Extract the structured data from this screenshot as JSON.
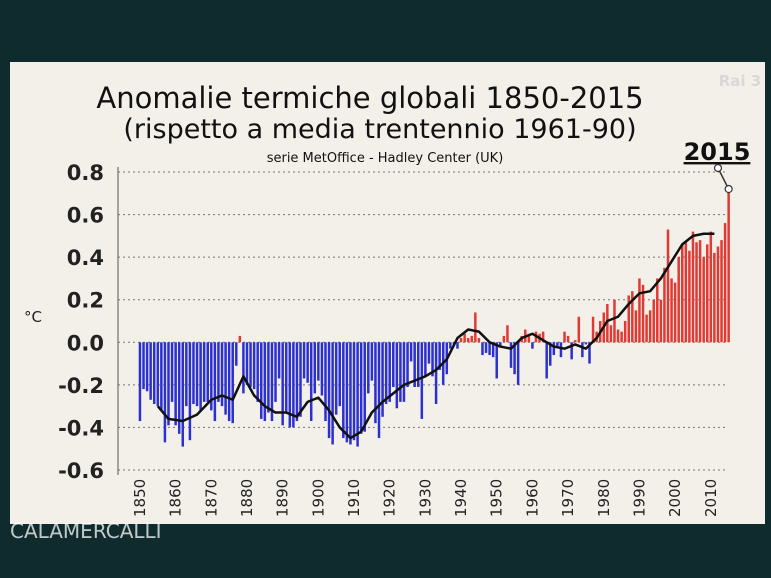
{
  "chart_data": {
    "type": "bar",
    "title": "Anomalie termiche globali 1850-2015",
    "subtitle": "(rispetto a media trentennio 1961-90)",
    "source": "serie MetOffice - Hadley Center (UK)",
    "y_label": "°C",
    "logo": "Rai 3",
    "watermark": "CALAMERCALLI",
    "annotations": [
      {
        "text": "2015"
      }
    ],
    "grid": true,
    "xlim": [
      1848.5,
      2016.5
    ],
    "xticks": [
      1850,
      1860,
      1870,
      1880,
      1890,
      1900,
      1910,
      1920,
      1930,
      1940,
      1950,
      1960,
      1970,
      1980,
      1990,
      2000,
      2010
    ],
    "ylim": [
      -0.6,
      0.8
    ],
    "yticks": [
      0.8,
      0.6,
      0.4,
      0.2,
      {
        "value": 0,
        "label": "0.0"
      },
      -0.2,
      -0.4,
      -0.6
    ],
    "series": [
      {
        "type": "bar",
        "color": "#e03a35",
        "negative_color": "#2b30cf",
        "x": [
          1850,
          1851,
          1852,
          1853,
          1854,
          1855,
          1856,
          1857,
          1858,
          1859,
          1860,
          1861,
          1862,
          1863,
          1864,
          1865,
          1866,
          1867,
          1868,
          1869,
          1870,
          1871,
          1872,
          1873,
          1874,
          1875,
          1876,
          1877,
          1878,
          1879,
          1880,
          1881,
          1882,
          1883,
          1884,
          1885,
          1886,
          1887,
          1888,
          1889,
          1890,
          1891,
          1892,
          1893,
          1894,
          1895,
          1896,
          1897,
          1898,
          1899,
          1900,
          1901,
          1902,
          1903,
          1904,
          1905,
          1906,
          1907,
          1908,
          1909,
          1910,
          1911,
          1912,
          1913,
          1914,
          1915,
          1916,
          1917,
          1918,
          1919,
          1920,
          1921,
          1922,
          1923,
          1924,
          1925,
          1926,
          1927,
          1928,
          1929,
          1930,
          1931,
          1932,
          1933,
          1934,
          1935,
          1936,
          1937,
          1938,
          1939,
          1940,
          1941,
          1942,
          1943,
          1944,
          1945,
          1946,
          1947,
          1948,
          1949,
          1950,
          1951,
          1952,
          1953,
          1954,
          1955,
          1956,
          1957,
          1958,
          1959,
          1960,
          1961,
          1962,
          1963,
          1964,
          1965,
          1966,
          1967,
          1968,
          1969,
          1970,
          1971,
          1972,
          1973,
          1974,
          1975,
          1976,
          1977,
          1978,
          1979,
          1980,
          1981,
          1982,
          1983,
          1984,
          1985,
          1986,
          1987,
          1988,
          1989,
          1990,
          1991,
          1992,
          1993,
          1994,
          1995,
          1996,
          1997,
          1998,
          1999,
          2000,
          2001,
          2002,
          2003,
          2004,
          2005,
          2006,
          2007,
          2008,
          2009,
          2010,
          2011,
          2012,
          2013,
          2014,
          2015
        ],
        "values": [
          -0.37,
          -0.22,
          -0.23,
          -0.27,
          -0.29,
          -0.3,
          -0.32,
          -0.47,
          -0.39,
          -0.28,
          -0.39,
          -0.43,
          -0.49,
          -0.3,
          -0.46,
          -0.29,
          -0.3,
          -0.32,
          -0.28,
          -0.28,
          -0.32,
          -0.37,
          -0.28,
          -0.3,
          -0.34,
          -0.37,
          -0.38,
          -0.11,
          0.03,
          -0.24,
          -0.2,
          -0.21,
          -0.22,
          -0.28,
          -0.36,
          -0.37,
          -0.33,
          -0.37,
          -0.28,
          -0.17,
          -0.39,
          -0.33,
          -0.4,
          -0.4,
          -0.37,
          -0.35,
          -0.17,
          -0.19,
          -0.37,
          -0.24,
          -0.18,
          -0.25,
          -0.37,
          -0.45,
          -0.48,
          -0.34,
          -0.3,
          -0.45,
          -0.47,
          -0.48,
          -0.46,
          -0.49,
          -0.43,
          -0.42,
          -0.24,
          -0.18,
          -0.38,
          -0.45,
          -0.35,
          -0.29,
          -0.28,
          -0.21,
          -0.31,
          -0.28,
          -0.28,
          -0.21,
          -0.09,
          -0.21,
          -0.21,
          -0.36,
          -0.16,
          -0.1,
          -0.16,
          -0.29,
          -0.13,
          -0.2,
          -0.15,
          -0.03,
          -0.01,
          -0.03,
          0.02,
          0.04,
          0.02,
          0.03,
          0.14,
          0.02,
          -0.06,
          -0.05,
          -0.06,
          -0.07,
          -0.17,
          -0.02,
          0.03,
          0.08,
          -0.12,
          -0.15,
          -0.2,
          0.03,
          0.06,
          0.04,
          -0.03,
          0.05,
          0.04,
          0.05,
          -0.17,
          -0.11,
          -0.06,
          -0.02,
          -0.07,
          0.05,
          0.03,
          -0.08,
          0.01,
          0.12,
          -0.07,
          -0.01,
          -0.1,
          0.12,
          0.05,
          0.1,
          0.14,
          0.18,
          0.08,
          0.2,
          0.06,
          0.05,
          0.1,
          0.22,
          0.24,
          0.15,
          0.3,
          0.27,
          0.13,
          0.15,
          0.2,
          0.3,
          0.2,
          0.35,
          0.53,
          0.3,
          0.28,
          0.4,
          0.46,
          0.47,
          0.43,
          0.52,
          0.47,
          0.48,
          0.4,
          0.46,
          0.52,
          0.42,
          0.45,
          0.48,
          0.56,
          0.72
        ]
      },
      {
        "type": "line",
        "color": "#111111",
        "x": [
          1855,
          1858,
          1862,
          1866,
          1870,
          1873,
          1876,
          1879,
          1882,
          1885,
          1888,
          1891,
          1894,
          1897,
          1900,
          1903,
          1906,
          1909,
          1912,
          1915,
          1918,
          1921,
          1924,
          1927,
          1930,
          1933,
          1936,
          1939,
          1942,
          1945,
          1948,
          1951,
          1954,
          1957,
          1960,
          1963,
          1966,
          1969,
          1972,
          1975,
          1978,
          1981,
          1984,
          1987,
          1990,
          1993,
          1996,
          1999,
          2002,
          2005,
          2008,
          2011
        ],
        "values": [
          -0.3,
          -0.36,
          -0.37,
          -0.34,
          -0.27,
          -0.25,
          -0.27,
          -0.16,
          -0.25,
          -0.3,
          -0.33,
          -0.33,
          -0.35,
          -0.28,
          -0.26,
          -0.32,
          -0.4,
          -0.45,
          -0.42,
          -0.33,
          -0.28,
          -0.24,
          -0.2,
          -0.18,
          -0.16,
          -0.13,
          -0.08,
          0.02,
          0.06,
          0.05,
          0.0,
          -0.02,
          -0.03,
          0.02,
          0.04,
          0.01,
          -0.02,
          -0.03,
          -0.01,
          -0.03,
          0.02,
          0.1,
          0.12,
          0.18,
          0.23,
          0.24,
          0.3,
          0.38,
          0.46,
          0.5,
          0.51,
          0.51
        ]
      }
    ]
  }
}
